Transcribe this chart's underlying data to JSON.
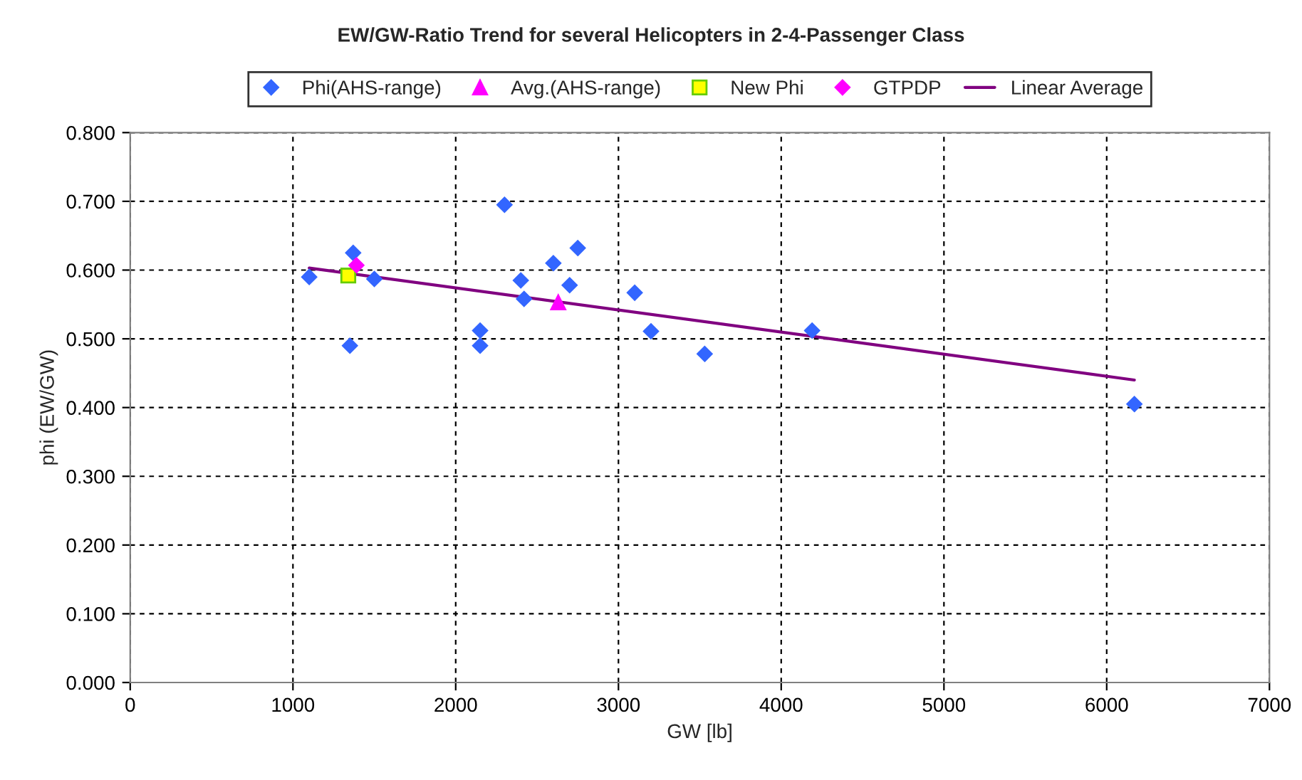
{
  "chart_data": {
    "type": "scatter",
    "title": "EW/GW-Ratio Trend for several Helicopters in 2-4-Passenger Class",
    "xlabel": "GW [lb]",
    "ylabel": "phi (EW/GW)",
    "series": [
      {
        "name": "Phi(AHS-range)",
        "marker": "diamond",
        "color": "#3366ff",
        "x": [
          1100,
          1370,
          1350,
          1500,
          2150,
          2150,
          2300,
          2400,
          2420,
          2600,
          2700,
          2750,
          3100,
          3200,
          3530,
          4190,
          6170
        ],
        "values": [
          0.59,
          0.625,
          0.49,
          0.587,
          0.512,
          0.49,
          0.695,
          0.585,
          0.558,
          0.61,
          0.578,
          0.632,
          0.567,
          0.511,
          0.478,
          0.512,
          0.405
        ]
      },
      {
        "name": "Avg.(AHS-range)",
        "marker": "triangle",
        "color": "#ff00ff",
        "x": [
          2630
        ],
        "values": [
          0.553
        ]
      },
      {
        "name": "New Phi",
        "marker": "square",
        "color": "#ffff00",
        "x": [
          1340
        ],
        "values": [
          0.592
        ]
      },
      {
        "name": "GTPDP",
        "marker": "diamond",
        "color": "#ff00ff",
        "x": [
          1390
        ],
        "values": [
          0.607
        ]
      },
      {
        "name": "Linear Average",
        "type": "line",
        "marker": "none",
        "color": "#800080",
        "x": [
          1100,
          6170
        ],
        "values": [
          0.603,
          0.44
        ]
      }
    ],
    "xlim": [
      0,
      7000
    ],
    "xticks": [
      0,
      1000,
      2000,
      3000,
      4000,
      5000,
      6000,
      7000
    ],
    "ylim": [
      0,
      0.8
    ],
    "yticks": [
      {
        "value": 0,
        "label": "0.000"
      },
      {
        "value": 0.1,
        "label": "0.100"
      },
      {
        "value": 0.2,
        "label": "0.200"
      },
      {
        "value": 0.3,
        "label": "0.300"
      },
      {
        "value": 0.4,
        "label": "0.400"
      },
      {
        "value": 0.5,
        "label": "0.500"
      },
      {
        "value": 0.6,
        "label": "0.600"
      },
      {
        "value": 0.7,
        "label": "0.700"
      },
      {
        "value": 0.8,
        "label": "0.800"
      }
    ],
    "grid": true,
    "legend": "top"
  }
}
